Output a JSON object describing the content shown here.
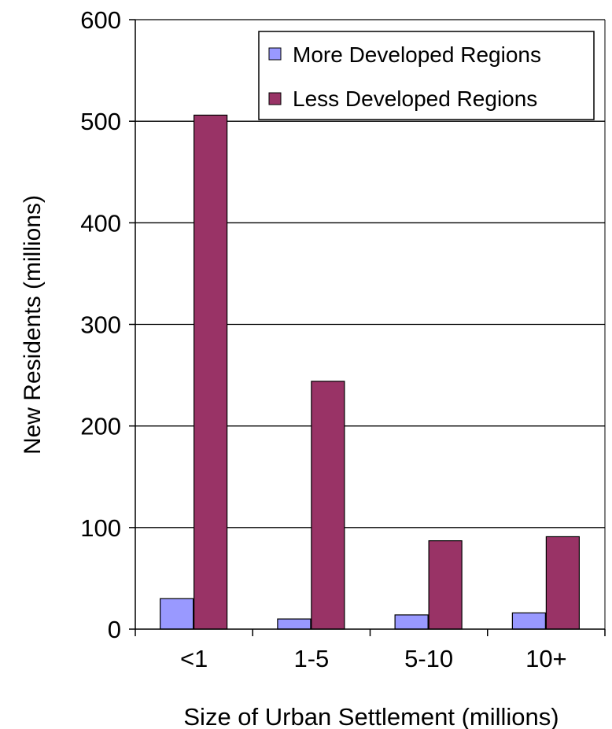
{
  "chart_data": {
    "type": "bar",
    "title": "",
    "xlabel": "Size of Urban Settlement (millions)",
    "ylabel": "New Residents (millions)",
    "categories": [
      "<1",
      "1-5",
      "5-10",
      "10+"
    ],
    "ylim": [
      0,
      600
    ],
    "yticks": [
      0,
      100,
      200,
      300,
      400,
      500,
      600
    ],
    "grid": true,
    "legend_position": "top-right",
    "series": [
      {
        "name": "More Developed Regions",
        "color": "#9999ff",
        "values": [
          30,
          10,
          14,
          16
        ]
      },
      {
        "name": "Less Developed Regions",
        "color": "#993366",
        "values": [
          506,
          244,
          87,
          91
        ]
      }
    ]
  }
}
